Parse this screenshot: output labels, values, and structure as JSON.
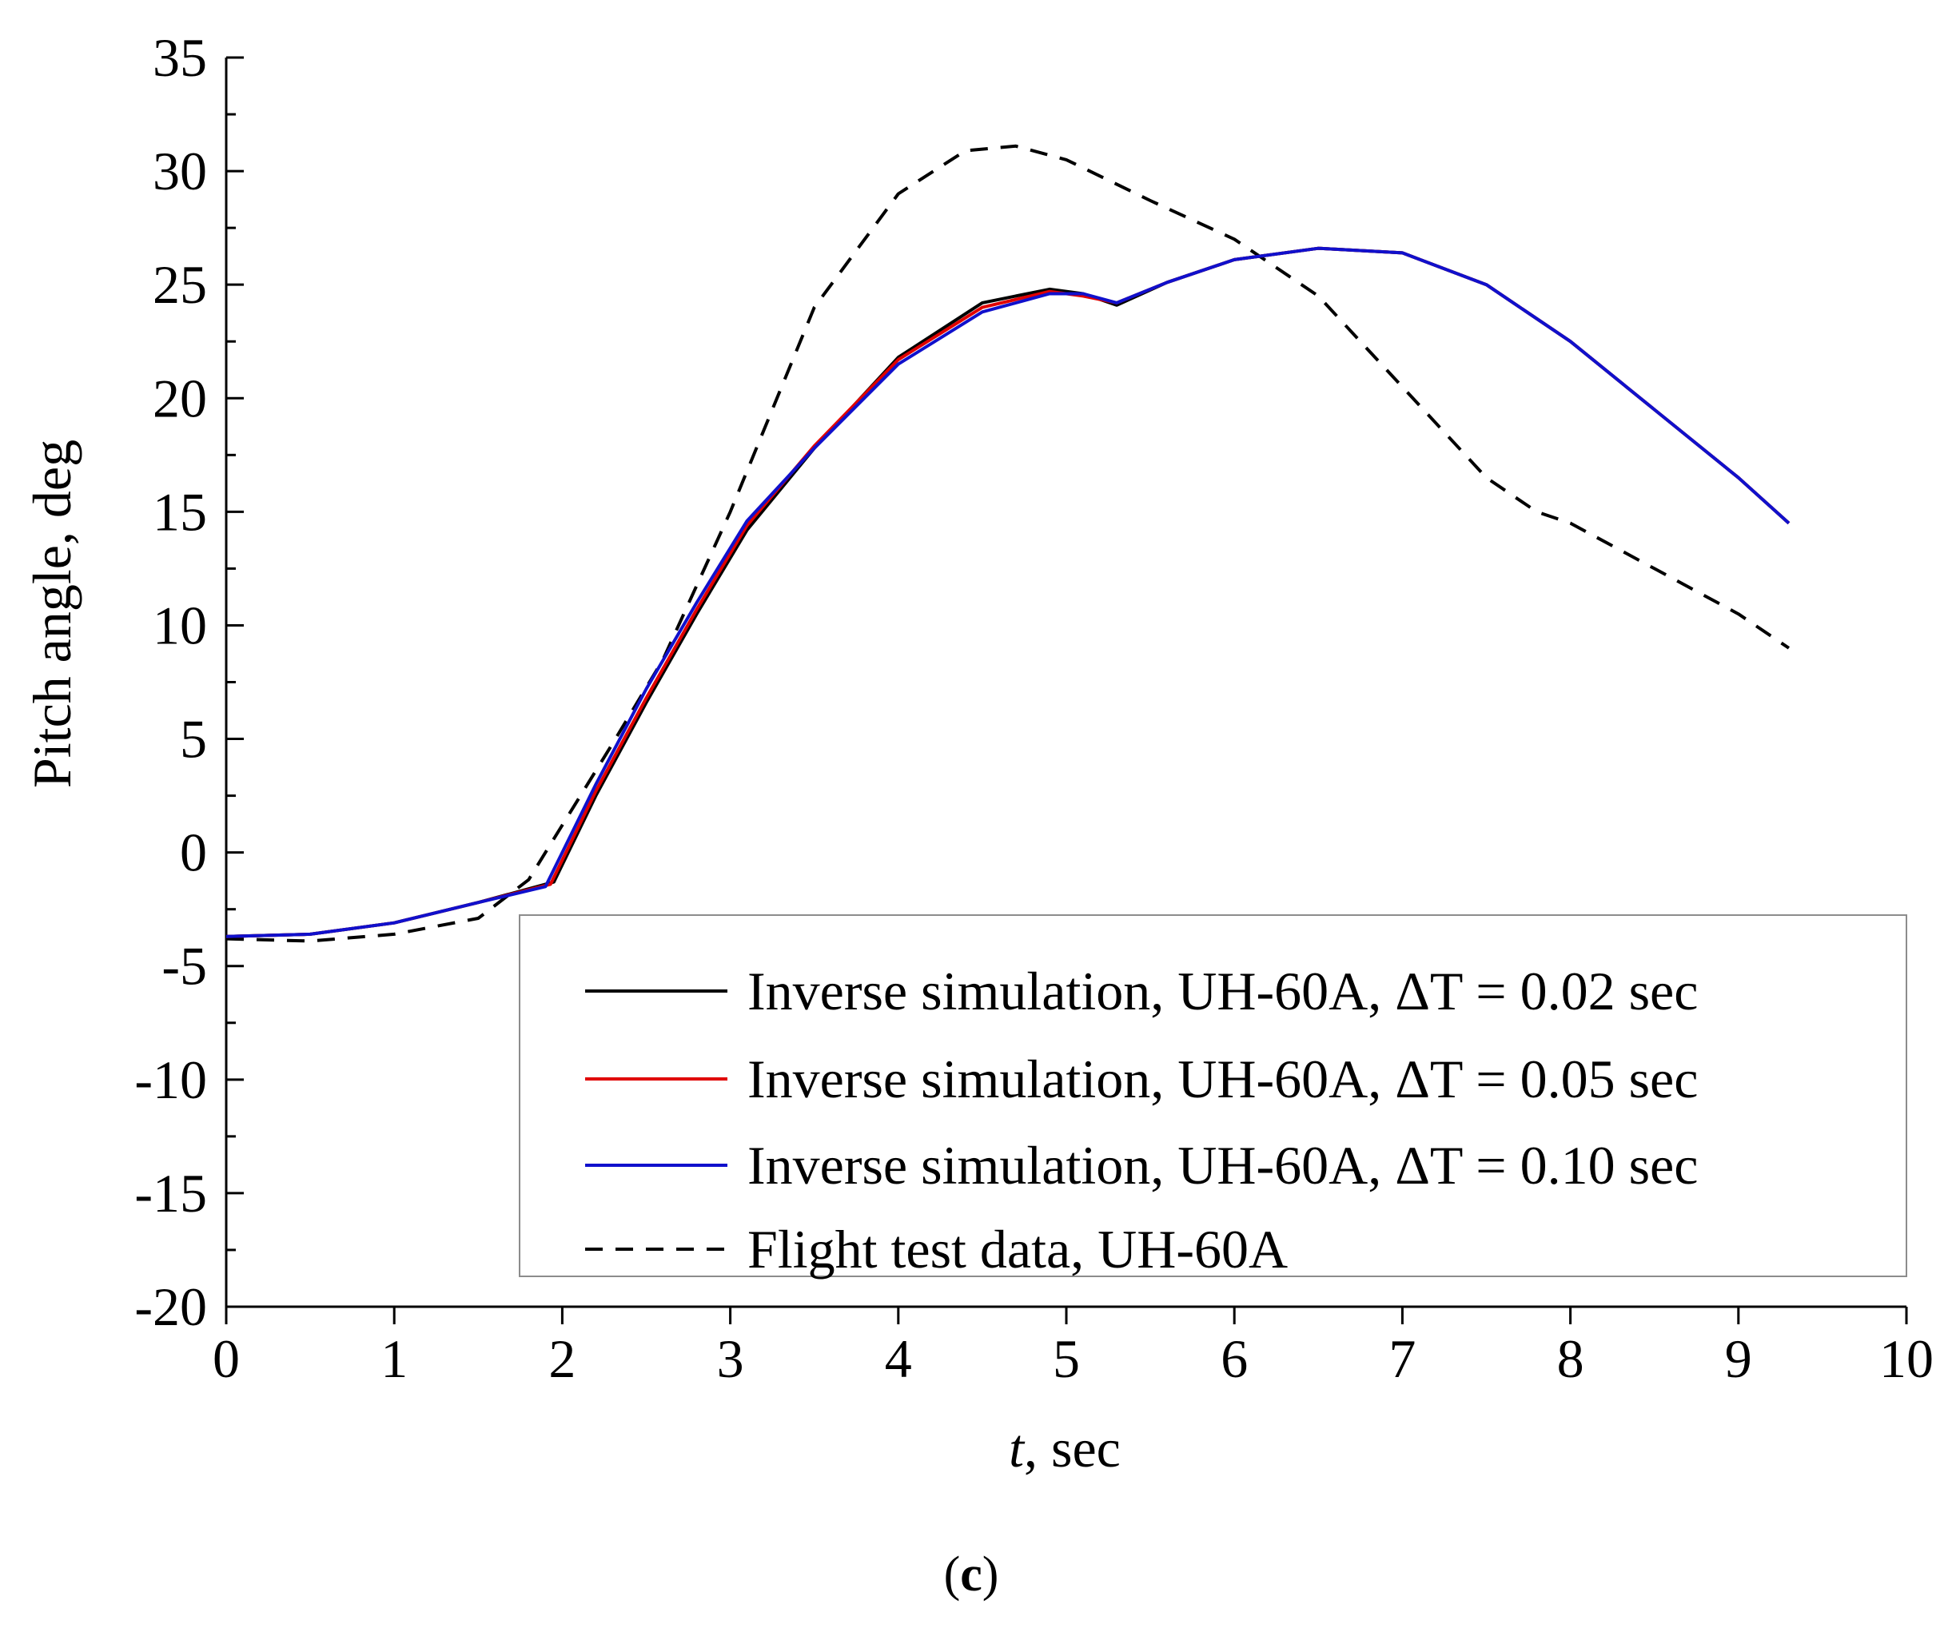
{
  "chart_data": {
    "type": "line",
    "title": "",
    "xlabel": "t, sec",
    "xlabel_var": "t",
    "xlabel_unit": ", sec",
    "ylabel": "Pitch angle, deg",
    "xlim": [
      0,
      10
    ],
    "ylim": [
      -20,
      35
    ],
    "x_ticks": [
      0,
      1,
      2,
      3,
      4,
      5,
      6,
      7,
      8,
      9,
      10
    ],
    "x_tick_labels": [
      "0",
      "1",
      "2",
      "3",
      "4",
      "5",
      "6",
      "7",
      "8",
      "9",
      "10"
    ],
    "y_ticks": [
      -20,
      -15,
      -10,
      -5,
      0,
      5,
      10,
      15,
      20,
      25,
      30,
      35
    ],
    "y_tick_labels": [
      "-20",
      "-15",
      "-10",
      "-5",
      "0",
      "5",
      "10",
      "15",
      "20",
      "25",
      "30",
      "35"
    ],
    "grid": false,
    "legend_position": "bottom-right",
    "series": [
      {
        "name": "Inverse simulation, UH-60A, ΔT = 0.02 sec",
        "color": "#000000",
        "dash": "solid",
        "x": [
          0,
          0.5,
          1.0,
          1.5,
          1.95,
          2.2,
          2.5,
          2.8,
          3.1,
          3.5,
          4.0,
          4.5,
          4.9,
          5.1,
          5.3,
          5.6,
          6.0,
          6.5,
          7.0,
          7.5,
          8.0,
          8.5,
          9.0,
          9.3
        ],
        "y": [
          -3.7,
          -3.6,
          -3.1,
          -2.2,
          -1.3,
          2.5,
          6.6,
          10.5,
          14.2,
          17.8,
          21.8,
          24.2,
          24.8,
          24.6,
          24.1,
          25.1,
          26.1,
          26.6,
          26.4,
          25.0,
          22.5,
          19.5,
          16.5,
          14.5
        ]
      },
      {
        "name": "Inverse simulation, UH-60A, ΔT = 0.05 sec",
        "color": "#e00000",
        "dash": "solid",
        "x": [
          0,
          0.5,
          1.0,
          1.5,
          1.93,
          2.2,
          2.5,
          2.8,
          3.1,
          3.5,
          4.0,
          4.5,
          4.9,
          5.1,
          5.3,
          5.6,
          6.0,
          6.5,
          7.0,
          7.5,
          8.0,
          8.5,
          9.0,
          9.3
        ],
        "y": [
          -3.7,
          -3.6,
          -3.1,
          -2.2,
          -1.4,
          2.7,
          6.8,
          10.7,
          14.4,
          17.9,
          21.7,
          24.0,
          24.7,
          24.5,
          24.2,
          25.1,
          26.1,
          26.6,
          26.4,
          25.0,
          22.5,
          19.5,
          16.5,
          14.5
        ]
      },
      {
        "name": "Inverse simulation, UH-60A, ΔT = 0.10 sec",
        "color": "#1010cc",
        "dash": "solid",
        "x": [
          0,
          0.5,
          1.0,
          1.5,
          1.9,
          2.2,
          2.5,
          2.8,
          3.1,
          3.5,
          4.0,
          4.5,
          4.9,
          5.1,
          5.3,
          5.6,
          6.0,
          6.5,
          7.0,
          7.5,
          8.0,
          8.5,
          9.0,
          9.3
        ],
        "y": [
          -3.7,
          -3.6,
          -3.1,
          -2.2,
          -1.5,
          3.0,
          7.2,
          11.0,
          14.6,
          17.8,
          21.5,
          23.8,
          24.6,
          24.6,
          24.2,
          25.1,
          26.1,
          26.6,
          26.4,
          25.0,
          22.5,
          19.5,
          16.5,
          14.5
        ]
      },
      {
        "name": "Flight test data, UH-60A",
        "color": "#000000",
        "dash": "dashed",
        "x": [
          0,
          0.5,
          1.0,
          1.5,
          1.8,
          2.0,
          2.3,
          2.6,
          3.0,
          3.5,
          4.0,
          4.4,
          4.7,
          5.0,
          5.5,
          6.0,
          6.5,
          7.0,
          7.5,
          7.8,
          8.0,
          8.5,
          9.0,
          9.3
        ],
        "y": [
          -3.8,
          -3.9,
          -3.6,
          -2.9,
          -1.2,
          1.2,
          4.8,
          8.5,
          15.0,
          24.0,
          29.0,
          30.9,
          31.1,
          30.5,
          28.7,
          27.0,
          24.5,
          20.5,
          16.5,
          15.0,
          14.5,
          12.5,
          10.5,
          9.0
        ]
      }
    ],
    "caption": "(c)"
  }
}
